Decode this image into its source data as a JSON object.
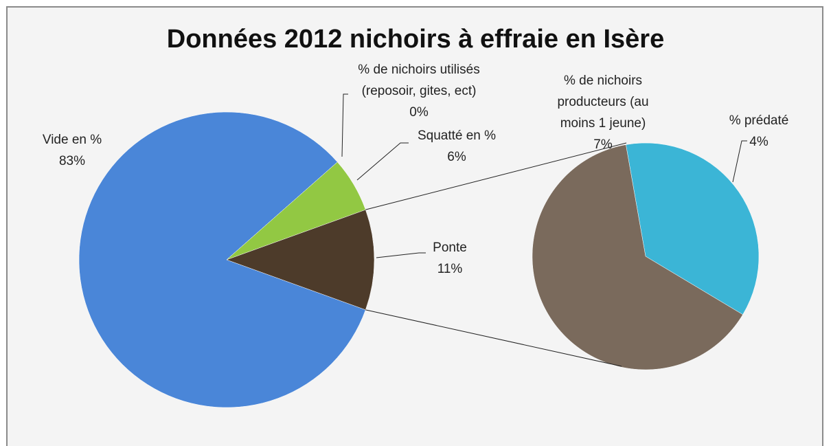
{
  "chart_data": {
    "type": "pie-of-pie",
    "title": "Données 2012 nichoirs à effraie en Isère",
    "categories": [
      "Vide en %",
      "% de nichoirs utilisés (reposoir, gites, ect)",
      "Squatté en %",
      "Ponte"
    ],
    "values": [
      83,
      0,
      6,
      11
    ],
    "value_labels": [
      "83%",
      "0%",
      "6%",
      "11%"
    ],
    "colors": [
      "#4a86d8",
      "#7fb3e8",
      "#92c843",
      "#4d3b2a"
    ],
    "secondary": {
      "categories": [
        "% de nichoirs producteurs (au moins 1 jeune)",
        "% prédaté"
      ],
      "values": [
        7,
        4
      ],
      "value_labels": [
        "7%",
        "4%"
      ],
      "colors": [
        "#7a6a5c",
        "#3bb5d6"
      ]
    }
  }
}
